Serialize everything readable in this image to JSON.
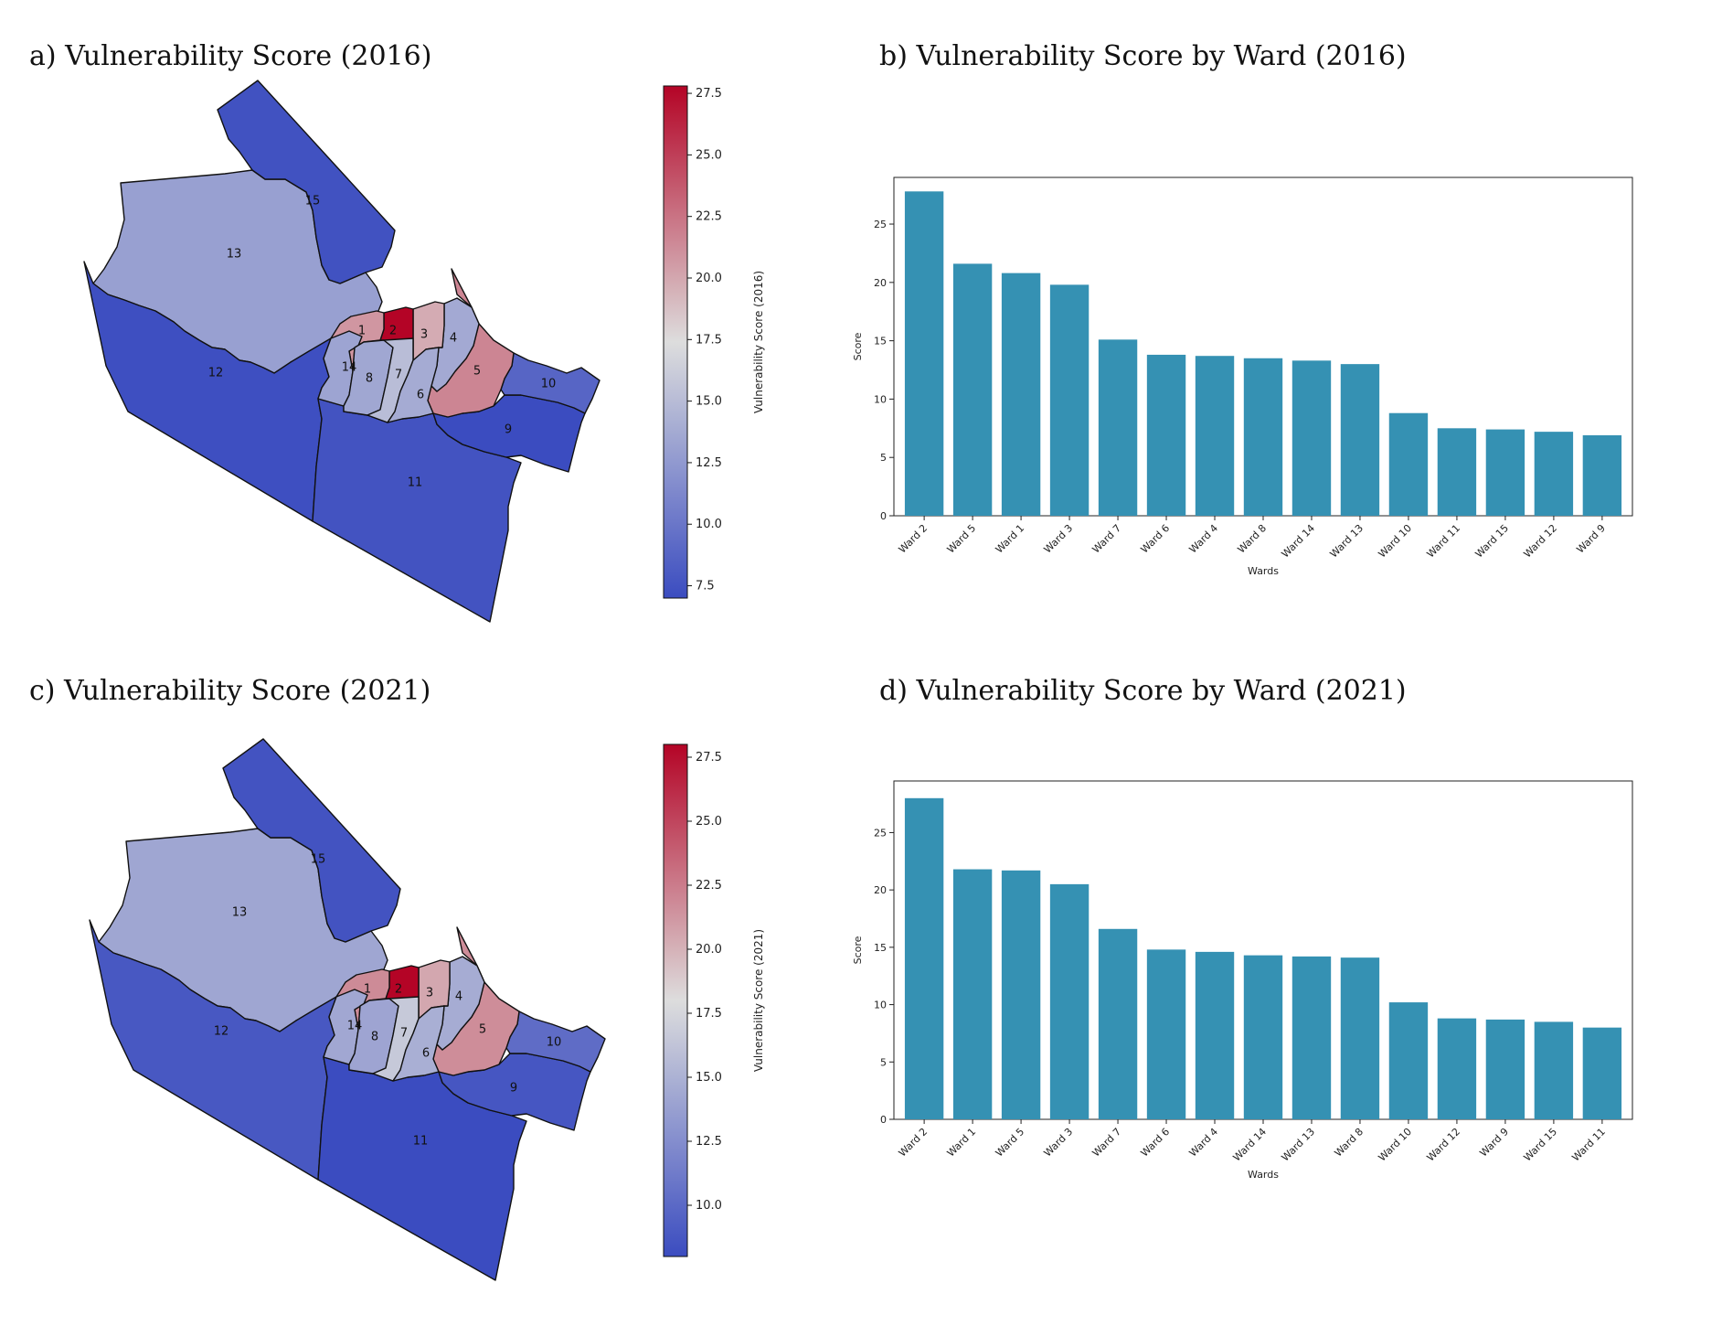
{
  "panels": {
    "a_title": "a) Vulnerability Score (2016)",
    "b_title": "b) Vulnerability Score by Ward (2016)",
    "c_title": "c) Vulnerability Score (2021)",
    "d_title": "d) Vulnerability Score by Ward (2021)"
  },
  "colors": {
    "bar": "#3591b3",
    "cmap_low": "#3b4cc0",
    "cmap_mid": "#dddddd",
    "cmap_high": "#b40426"
  },
  "chart_data": [
    {
      "type": "choropleth",
      "title": "a) Vulnerability Score (2016)",
      "colorbar_label": "Vulnerability Score (2016)",
      "colorbar_ticks": [
        "7.5",
        "10.0",
        "12.5",
        "15.0",
        "17.5",
        "20.0",
        "22.5",
        "25.0",
        "27.5"
      ],
      "range": [
        7.0,
        27.8
      ],
      "wards": [
        {
          "ward": "1",
          "value": 20.8
        },
        {
          "ward": "2",
          "value": 27.8
        },
        {
          "ward": "3",
          "value": 19.8
        },
        {
          "ward": "4",
          "value": 13.7
        },
        {
          "ward": "5",
          "value": 21.6
        },
        {
          "ward": "6",
          "value": 13.8
        },
        {
          "ward": "7",
          "value": 15.1
        },
        {
          "ward": "8",
          "value": 13.5
        },
        {
          "ward": "9",
          "value": 6.9
        },
        {
          "ward": "10",
          "value": 8.8
        },
        {
          "ward": "11",
          "value": 7.5
        },
        {
          "ward": "12",
          "value": 7.2
        },
        {
          "ward": "13",
          "value": 13.0
        },
        {
          "ward": "14",
          "value": 13.3
        },
        {
          "ward": "15",
          "value": 7.4
        }
      ]
    },
    {
      "type": "bar",
      "title": "b) Vulnerability Score by Ward (2016)",
      "xlabel": "Wards",
      "ylabel": "Score",
      "ylim": [
        0,
        29
      ],
      "yticks": [
        "0",
        "5",
        "10",
        "15",
        "20",
        "25"
      ],
      "categories": [
        "Ward 2",
        "Ward 5",
        "Ward 1",
        "Ward 3",
        "Ward 7",
        "Ward 6",
        "Ward 4",
        "Ward 8",
        "Ward 14",
        "Ward 13",
        "Ward 10",
        "Ward 11",
        "Ward 15",
        "Ward 12",
        "Ward 9"
      ],
      "values": [
        27.8,
        21.6,
        20.8,
        19.8,
        15.1,
        13.8,
        13.7,
        13.5,
        13.3,
        13.0,
        8.8,
        7.5,
        7.4,
        7.2,
        6.9
      ]
    },
    {
      "type": "choropleth",
      "title": "c) Vulnerability Score (2021)",
      "colorbar_label": "Vulnerability Score (2021)",
      "colorbar_ticks": [
        "10.0",
        "12.5",
        "15.0",
        "17.5",
        "20.0",
        "22.5",
        "25.0",
        "27.5"
      ],
      "range": [
        8.0,
        28.0
      ],
      "wards": [
        {
          "ward": "1",
          "value": 21.8
        },
        {
          "ward": "2",
          "value": 28.0
        },
        {
          "ward": "3",
          "value": 20.5
        },
        {
          "ward": "4",
          "value": 14.6
        },
        {
          "ward": "5",
          "value": 21.7
        },
        {
          "ward": "6",
          "value": 14.8
        },
        {
          "ward": "7",
          "value": 16.6
        },
        {
          "ward": "8",
          "value": 14.1
        },
        {
          "ward": "9",
          "value": 8.7
        },
        {
          "ward": "10",
          "value": 10.2
        },
        {
          "ward": "11",
          "value": 8.0
        },
        {
          "ward": "12",
          "value": 8.8
        },
        {
          "ward": "13",
          "value": 14.2
        },
        {
          "ward": "14",
          "value": 14.3
        },
        {
          "ward": "15",
          "value": 8.5
        }
      ]
    },
    {
      "type": "bar",
      "title": "d) Vulnerability Score by Ward (2021)",
      "xlabel": "Wards",
      "ylabel": "Score",
      "ylim": [
        0,
        29.5
      ],
      "yticks": [
        "0",
        "5",
        "10",
        "15",
        "20",
        "25"
      ],
      "categories": [
        "Ward 2",
        "Ward 1",
        "Ward 5",
        "Ward 3",
        "Ward 7",
        "Ward 6",
        "Ward 4",
        "Ward 14",
        "Ward 13",
        "Ward 8",
        "Ward 10",
        "Ward 12",
        "Ward 9",
        "Ward 15",
        "Ward 11"
      ],
      "values": [
        28.0,
        21.8,
        21.7,
        20.5,
        16.6,
        14.8,
        14.6,
        14.3,
        14.2,
        14.1,
        10.2,
        8.8,
        8.7,
        8.5,
        8.0
      ]
    }
  ]
}
